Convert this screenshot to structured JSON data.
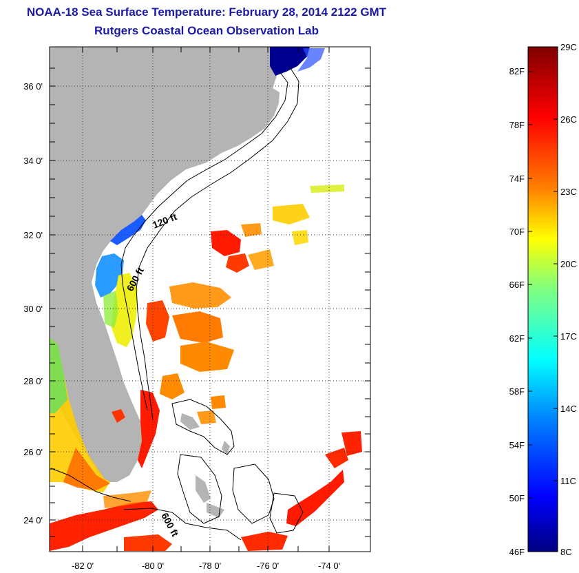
{
  "header": {
    "title": "NOAA-18 Sea Surface Temperature:  February 28, 2014 2122 GMT",
    "subtitle": "Rutgers Coastal Ocean Observation Lab"
  },
  "map": {
    "lat_ticks": [
      "36 0'",
      "34 0'",
      "32 0'",
      "30 0'",
      "28 0'",
      "26 0'",
      "24 0'"
    ],
    "lon_ticks": [
      "-82 0'",
      "-80 0'",
      "-78 0'",
      "-76 0'",
      "-74 0'"
    ],
    "contour_labels": [
      "120 ft",
      "600 ft",
      "600 ft"
    ],
    "land_color": "#b4b4b4"
  },
  "colorbar": {
    "fahrenheit_labels": [
      "82F",
      "78F",
      "74F",
      "70F",
      "66F",
      "62F",
      "58F",
      "54F",
      "50F",
      "46F"
    ],
    "celsius_labels": [
      "29C",
      "26C",
      "23C",
      "20C",
      "17C",
      "14C",
      "11C",
      "8C"
    ],
    "gradient_stops": [
      "#000080",
      "#0000ff",
      "#0080ff",
      "#00ffff",
      "#80ff80",
      "#ffff00",
      "#ff8000",
      "#ff0000",
      "#800000"
    ]
  }
}
